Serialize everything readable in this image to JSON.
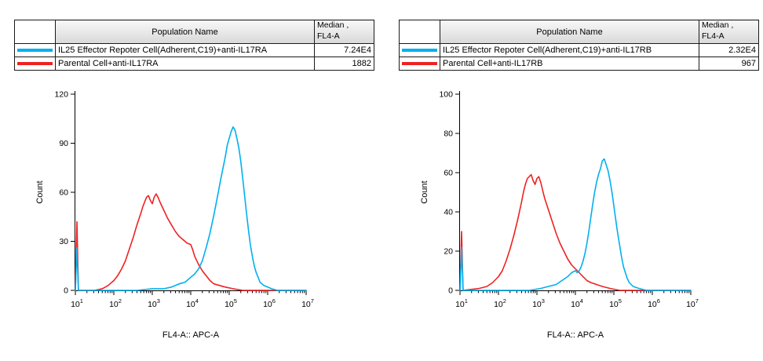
{
  "colors": {
    "cyan": "#00B0F0",
    "red": "#EE2222",
    "axis": "#000000",
    "header_bg": "#e6e6e6",
    "table_border": "#1a1a1a"
  },
  "panels": [
    {
      "table": {
        "headers": {
          "swatch": "",
          "population": "Population Name",
          "median_line1": "Median ,",
          "median_line2": "FL4-A"
        },
        "rows": [
          {
            "color": "#00B0F0",
            "name": "IL25 Effector Repoter Cell(Adherent,C19)+anti-IL17RA",
            "median": "7.24E4"
          },
          {
            "color": "#EE2222",
            "name": "Parental Cell+anti-IL17RA",
            "median": "1882"
          }
        ]
      }
    },
    {
      "table": {
        "headers": {
          "swatch": "",
          "population": "Population Name",
          "median_line1": "Median ,",
          "median_line2": "FL4-A"
        },
        "rows": [
          {
            "color": "#00B0F0",
            "name": "IL25 Effector Repoter Cell(Adherent,C19)+anti-IL17RB",
            "median": "2.32E4"
          },
          {
            "color": "#EE2222",
            "name": "Parental Cell+anti-IL17RB",
            "median": "967"
          }
        ]
      }
    }
  ],
  "chart_data": [
    {
      "type": "line",
      "title": "",
      "xlabel": "FL4-A:: APC-A",
      "ylabel": "Count",
      "x_scale": "log10",
      "xlim_log10": [
        1,
        7
      ],
      "x_ticks_log10": [
        1,
        2,
        3,
        4,
        5,
        6,
        7
      ],
      "x_tick_labels": [
        "10^1",
        "10^2",
        "10^3",
        "10^4",
        "10^5",
        "10^6",
        "10^7"
      ],
      "ylim": [
        0,
        120
      ],
      "y_ticks": [
        0,
        30,
        60,
        90,
        120
      ],
      "grid": false,
      "legend": "table above chart with color swatches",
      "series": [
        {
          "name": "IL25 Effector Repoter Cell(Adherent,C19)+anti-IL17RA",
          "color": "#00B0F0",
          "median": "7.24E4",
          "points_log10x_count": [
            [
              1.0,
              0
            ],
            [
              1.04,
              26
            ],
            [
              1.08,
              0
            ],
            [
              2.6,
              0
            ],
            [
              3.0,
              1
            ],
            [
              3.3,
              1
            ],
            [
              3.5,
              2
            ],
            [
              3.7,
              4
            ],
            [
              3.85,
              5
            ],
            [
              4.0,
              8
            ],
            [
              4.1,
              10
            ],
            [
              4.2,
              13
            ],
            [
              4.3,
              18
            ],
            [
              4.4,
              26
            ],
            [
              4.5,
              35
            ],
            [
              4.6,
              46
            ],
            [
              4.7,
              58
            ],
            [
              4.78,
              68
            ],
            [
              4.85,
              76
            ],
            [
              4.9,
              82
            ],
            [
              4.95,
              89
            ],
            [
              5.0,
              93
            ],
            [
              5.05,
              97
            ],
            [
              5.1,
              100
            ],
            [
              5.15,
              98
            ],
            [
              5.2,
              93
            ],
            [
              5.25,
              87
            ],
            [
              5.3,
              79
            ],
            [
              5.35,
              69
            ],
            [
              5.4,
              58
            ],
            [
              5.45,
              47
            ],
            [
              5.5,
              37
            ],
            [
              5.55,
              28
            ],
            [
              5.6,
              21
            ],
            [
              5.65,
              15
            ],
            [
              5.7,
              11
            ],
            [
              5.75,
              8
            ],
            [
              5.8,
              5
            ],
            [
              5.9,
              3
            ],
            [
              6.0,
              2
            ],
            [
              6.1,
              1
            ],
            [
              6.25,
              0
            ],
            [
              7.0,
              0
            ]
          ]
        },
        {
          "name": "Parental Cell+anti-IL17RA",
          "color": "#EE2222",
          "median": "1882",
          "points_log10x_count": [
            [
              1.0,
              0
            ],
            [
              1.04,
              42
            ],
            [
              1.08,
              0
            ],
            [
              1.5,
              0
            ],
            [
              1.7,
              1
            ],
            [
              1.85,
              3
            ],
            [
              2.0,
              6
            ],
            [
              2.1,
              9
            ],
            [
              2.2,
              13
            ],
            [
              2.3,
              18
            ],
            [
              2.4,
              25
            ],
            [
              2.5,
              32
            ],
            [
              2.6,
              40
            ],
            [
              2.7,
              47
            ],
            [
              2.75,
              51
            ],
            [
              2.8,
              54
            ],
            [
              2.85,
              57
            ],
            [
              2.9,
              58
            ],
            [
              2.95,
              55
            ],
            [
              3.0,
              53
            ],
            [
              3.05,
              57
            ],
            [
              3.1,
              59
            ],
            [
              3.15,
              57
            ],
            [
              3.2,
              54
            ],
            [
              3.3,
              49
            ],
            [
              3.4,
              44
            ],
            [
              3.5,
              40
            ],
            [
              3.6,
              36
            ],
            [
              3.7,
              33
            ],
            [
              3.8,
              31
            ],
            [
              3.9,
              29
            ],
            [
              4.0,
              28
            ],
            [
              4.05,
              25
            ],
            [
              4.1,
              21
            ],
            [
              4.2,
              16
            ],
            [
              4.3,
              12
            ],
            [
              4.4,
              9
            ],
            [
              4.5,
              6
            ],
            [
              4.6,
              4
            ],
            [
              4.75,
              3
            ],
            [
              4.9,
              2
            ],
            [
              5.1,
              1
            ],
            [
              5.35,
              0
            ],
            [
              7.0,
              0
            ]
          ]
        }
      ]
    },
    {
      "type": "line",
      "title": "",
      "xlabel": "FL4-A:: APC-A",
      "ylabel": "Count",
      "x_scale": "log10",
      "xlim_log10": [
        1,
        7
      ],
      "x_ticks_log10": [
        1,
        2,
        3,
        4,
        5,
        6,
        7
      ],
      "x_tick_labels": [
        "10^1",
        "10^2",
        "10^3",
        "10^4",
        "10^5",
        "10^6",
        "10^7"
      ],
      "ylim": [
        0,
        100
      ],
      "y_ticks": [
        0,
        20,
        40,
        60,
        80,
        100
      ],
      "grid": false,
      "legend": "table above chart with color swatches",
      "series": [
        {
          "name": "IL25 Effector Repoter Cell(Adherent,C19)+anti-IL17RB",
          "color": "#00B0F0",
          "median": "2.32E4",
          "points_log10x_count": [
            [
              1.0,
              0
            ],
            [
              1.04,
              22
            ],
            [
              1.08,
              0
            ],
            [
              2.8,
              0
            ],
            [
              3.1,
              1
            ],
            [
              3.3,
              2
            ],
            [
              3.5,
              3
            ],
            [
              3.65,
              5
            ],
            [
              3.8,
              7
            ],
            [
              3.9,
              9
            ],
            [
              4.0,
              10
            ],
            [
              4.05,
              9
            ],
            [
              4.1,
              10
            ],
            [
              4.15,
              12
            ],
            [
              4.2,
              15
            ],
            [
              4.25,
              19
            ],
            [
              4.3,
              24
            ],
            [
              4.35,
              30
            ],
            [
              4.4,
              37
            ],
            [
              4.45,
              44
            ],
            [
              4.5,
              50
            ],
            [
              4.55,
              55
            ],
            [
              4.6,
              59
            ],
            [
              4.65,
              62
            ],
            [
              4.7,
              66
            ],
            [
              4.75,
              67
            ],
            [
              4.8,
              64
            ],
            [
              4.85,
              61
            ],
            [
              4.9,
              56
            ],
            [
              4.95,
              50
            ],
            [
              5.0,
              43
            ],
            [
              5.05,
              36
            ],
            [
              5.1,
              29
            ],
            [
              5.15,
              23
            ],
            [
              5.2,
              17
            ],
            [
              5.25,
              12
            ],
            [
              5.3,
              9
            ],
            [
              5.35,
              6
            ],
            [
              5.4,
              4
            ],
            [
              5.5,
              2
            ],
            [
              5.65,
              1
            ],
            [
              5.85,
              0
            ],
            [
              7.0,
              0
            ]
          ]
        },
        {
          "name": "Parental Cell+anti-IL17RB",
          "color": "#EE2222",
          "median": "967",
          "points_log10x_count": [
            [
              1.0,
              0
            ],
            [
              1.04,
              30
            ],
            [
              1.08,
              0
            ],
            [
              1.5,
              1
            ],
            [
              1.7,
              2
            ],
            [
              1.85,
              4
            ],
            [
              2.0,
              7
            ],
            [
              2.1,
              10
            ],
            [
              2.2,
              15
            ],
            [
              2.3,
              21
            ],
            [
              2.4,
              28
            ],
            [
              2.5,
              36
            ],
            [
              2.6,
              45
            ],
            [
              2.65,
              50
            ],
            [
              2.7,
              54
            ],
            [
              2.75,
              57
            ],
            [
              2.8,
              58
            ],
            [
              2.85,
              59
            ],
            [
              2.9,
              56
            ],
            [
              2.95,
              54
            ],
            [
              3.0,
              57
            ],
            [
              3.05,
              58
            ],
            [
              3.1,
              55
            ],
            [
              3.15,
              51
            ],
            [
              3.2,
              47
            ],
            [
              3.3,
              41
            ],
            [
              3.4,
              35
            ],
            [
              3.5,
              29
            ],
            [
              3.6,
              24
            ],
            [
              3.7,
              20
            ],
            [
              3.8,
              16
            ],
            [
              3.9,
              13
            ],
            [
              4.0,
              11
            ],
            [
              4.1,
              9
            ],
            [
              4.2,
              7
            ],
            [
              4.3,
              5
            ],
            [
              4.4,
              4
            ],
            [
              4.55,
              3
            ],
            [
              4.7,
              2
            ],
            [
              4.9,
              1
            ],
            [
              5.15,
              0
            ],
            [
              7.0,
              0
            ]
          ]
        }
      ]
    }
  ]
}
